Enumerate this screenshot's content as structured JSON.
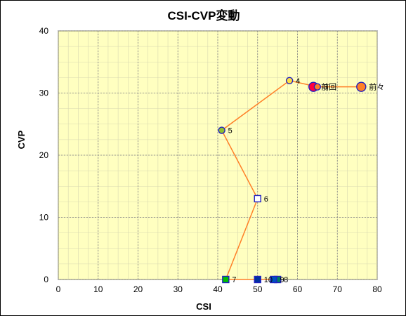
{
  "chart_data": {
    "type": "scatter",
    "title": "CSI-CVP変動",
    "xlabel": "CSI",
    "ylabel": "CVP",
    "xlim": [
      0,
      80
    ],
    "ylim": [
      0,
      40
    ],
    "xticks": [
      0,
      10,
      20,
      30,
      40,
      50,
      60,
      70,
      80
    ],
    "yticks": [
      0,
      10,
      20,
      30,
      40
    ],
    "grid": true,
    "colors": {
      "plot_bg": "#ffffc0",
      "grid_major": "#808080",
      "grid_minor": "#d8d8b0",
      "line": "#ff7f27",
      "marker_edge": "#2020c0"
    },
    "points": [
      {
        "label": "前々",
        "x": 76,
        "y": 31,
        "marker": "circle",
        "fill": "#ff7f27"
      },
      {
        "label": "前回",
        "x": 64,
        "y": 31,
        "marker": "circle",
        "fill": "#ff0040"
      },
      {
        "label": "3",
        "x": 65,
        "y": 31,
        "marker": "circle",
        "fill": "#ff7f27"
      },
      {
        "label": "4",
        "x": 58,
        "y": 32,
        "marker": "circle",
        "fill": "#ffe040"
      },
      {
        "label": "5",
        "x": 41,
        "y": 24,
        "marker": "circle",
        "fill": "#90c030"
      },
      {
        "label": "6",
        "x": 50,
        "y": 13,
        "marker": "square",
        "fill": "#ffffff"
      },
      {
        "label": "7",
        "x": 42,
        "y": 0,
        "marker": "square",
        "fill": "#00c000"
      },
      {
        "label": "8",
        "x": 55,
        "y": 0,
        "marker": "square",
        "fill": "#008060"
      },
      {
        "label": "9",
        "x": 54,
        "y": 0,
        "marker": "square",
        "fill": "#0050c0"
      },
      {
        "label": "10",
        "x": 50,
        "y": 0,
        "marker": "square",
        "fill": "#0030a0"
      }
    ],
    "line_order": [
      "前々",
      "前回",
      "3",
      "4",
      "5",
      "6",
      "7",
      "10",
      "9",
      "8"
    ]
  }
}
